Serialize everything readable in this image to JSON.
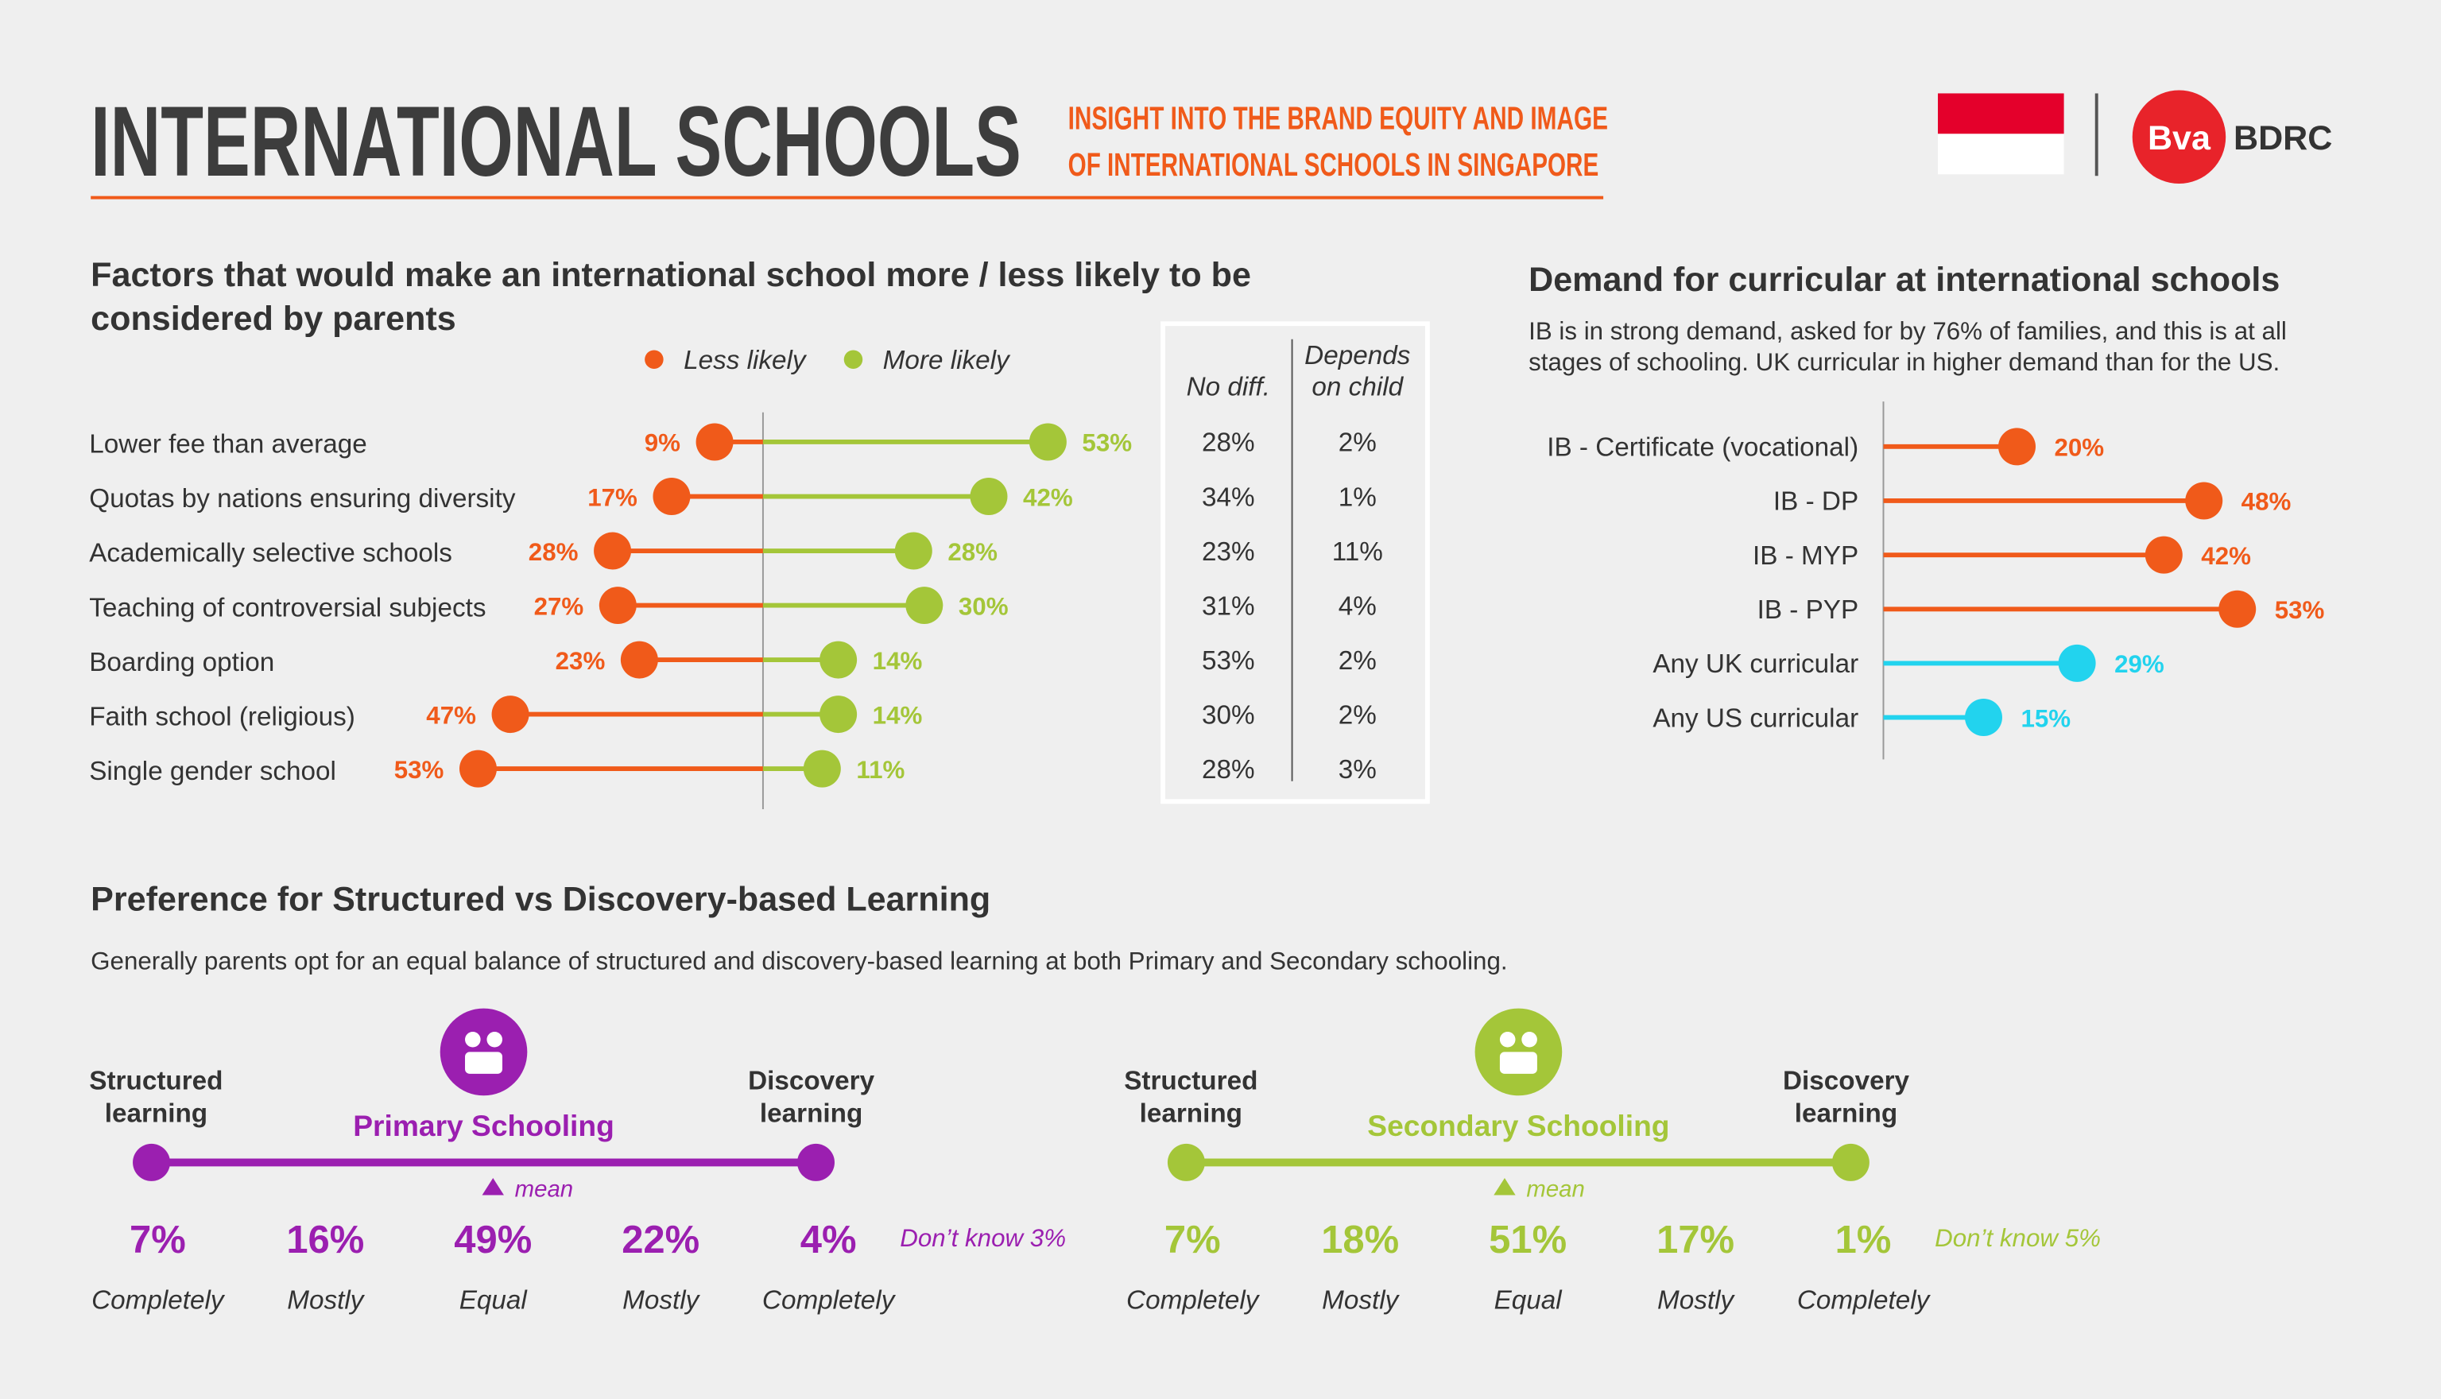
{
  "header": {
    "title": "INTERNATIONAL SCHOOLS",
    "subtitle_lines": [
      "INSIGHT INTO THE BRAND EQUITY AND IMAGE",
      "OF INTERNATIONAL SCHOOLS IN SINGAPORE"
    ],
    "logo": "Bva",
    "logo_text": "BDRC"
  },
  "section": {
    "title": "Preference for Structured vs Discovery-based Learning",
    "description": "Generally parents opt for an equal balance of structured and discovery-based learning at both Primary and Secondary schooling."
  },
  "chart_data": [
    {
      "type": "dumbbell",
      "title_lines": [
        "Factors that would make an international school more / less likely to be",
        "considered by parents"
      ],
      "categories": [
        "Lower fee than average",
        "Quotas by nations ensuring diversity",
        "Academically selective schools",
        "Teaching of controversial subjects",
        "Boarding option",
        "Faith school (religious)",
        "Single gender school"
      ],
      "xlim": [
        0,
        55
      ],
      "series": [
        {
          "name": "Less likely",
          "color": "#f05a1a",
          "values": [
            9,
            17,
            28,
            27,
            23,
            47,
            53
          ],
          "value_labels": [
            "9%",
            "17%",
            "28%",
            "27%",
            "23%",
            "47%",
            "53%"
          ]
        },
        {
          "name": "More likely",
          "color": "#a4c639",
          "values": [
            53,
            42,
            28,
            30,
            14,
            14,
            11
          ],
          "value_labels": [
            "53%",
            "42%",
            "28%",
            "30%",
            "14%",
            "14%",
            "11%"
          ]
        }
      ],
      "table": {
        "headers": [
          [
            "No diff."
          ],
          [
            "Depends",
            "on child"
          ]
        ],
        "rows": [
          [
            "28%",
            "2%"
          ],
          [
            "34%",
            "1%"
          ],
          [
            "23%",
            "11%"
          ],
          [
            "31%",
            "4%"
          ],
          [
            "53%",
            "2%"
          ],
          [
            "30%",
            "2%"
          ],
          [
            "28%",
            "3%"
          ]
        ]
      }
    },
    {
      "type": "lollipop",
      "title": "Demand for curricular at international schools",
      "subtitle_lines": [
        "IB is in strong demand, asked for by 76% of families, and this is at all",
        "stages of schooling. UK curricular in higher demand than for the US."
      ],
      "categories": [
        "IB - Certificate (vocational)",
        "IB - DP",
        "IB - MYP",
        "IB - PYP",
        "Any UK curricular",
        "Any US curricular"
      ],
      "xlim": [
        0,
        55
      ],
      "values": [
        20,
        48,
        42,
        53,
        29,
        15
      ],
      "value_labels": [
        "20%",
        "48%",
        "42%",
        "53%",
        "29%",
        "15%"
      ],
      "colors": [
        "#f05a1a",
        "#f05a1a",
        "#f05a1a",
        "#f05a1a",
        "#22d3ee",
        "#22d3ee"
      ]
    },
    {
      "type": "scale",
      "title": "Primary Schooling",
      "color": "#9b1fb0",
      "left_label": [
        "Structured",
        "learning"
      ],
      "right_label": [
        "Discovery",
        "learning"
      ],
      "categories": [
        "Completely",
        "Mostly",
        "Equal",
        "Mostly",
        "Completely"
      ],
      "values": [
        7,
        16,
        49,
        22,
        4
      ],
      "value_labels": [
        "7%",
        "16%",
        "49%",
        "22%",
        "4%"
      ],
      "mean_label": "mean",
      "dont_know": {
        "value": 3,
        "label": "Don’t know 3%"
      }
    },
    {
      "type": "scale",
      "title": "Secondary Schooling",
      "color": "#a4c639",
      "left_label": [
        "Structured",
        "learning"
      ],
      "right_label": [
        "Discovery",
        "learning"
      ],
      "categories": [
        "Completely",
        "Mostly",
        "Equal",
        "Mostly",
        "Completely"
      ],
      "values": [
        7,
        18,
        51,
        17,
        1
      ],
      "value_labels": [
        "7%",
        "18%",
        "51%",
        "17%",
        "1%"
      ],
      "mean_label": "mean",
      "dont_know": {
        "value": 5,
        "label": "Don’t know 5%"
      }
    }
  ]
}
